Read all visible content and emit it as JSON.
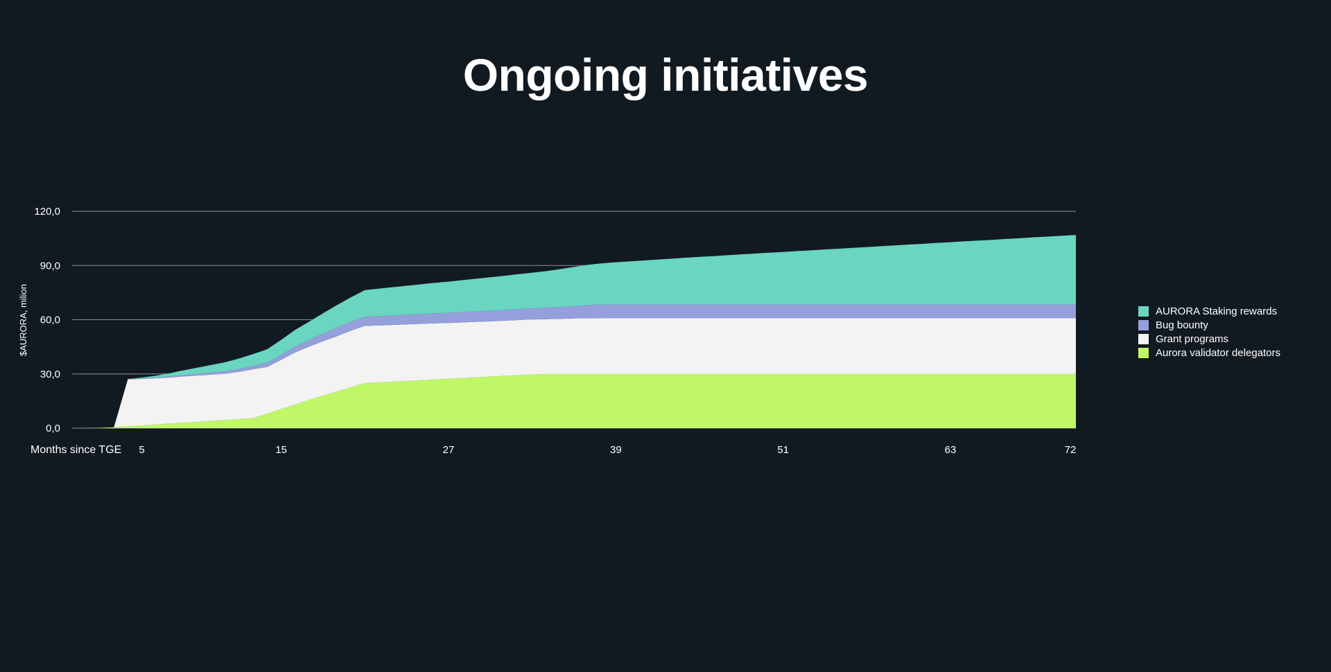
{
  "title": "Ongoing initiatives",
  "colors": {
    "background": "#121a21",
    "gridline": "#8a9097",
    "text": "#ffffff"
  },
  "chart_data": {
    "type": "area",
    "stacked": true,
    "title": "Ongoing initiatives",
    "xlabel": "Months since TGE",
    "ylabel": "$AURORA, milion",
    "ylim": [
      0,
      120
    ],
    "xlim": [
      0,
      72
    ],
    "yticks": [
      "0,0",
      "30,0",
      "60,0",
      "90,0",
      "120,0"
    ],
    "ytick_values": [
      0,
      30,
      60,
      90,
      120
    ],
    "xticks": [
      "5",
      "15",
      "27",
      "39",
      "51",
      "63",
      "72"
    ],
    "xtick_values": [
      5,
      15,
      27,
      39,
      51,
      63,
      72
    ],
    "grid": "horizontal",
    "legend_position": "right",
    "x": [
      0,
      1,
      2,
      3,
      4,
      5,
      6,
      7,
      8,
      9,
      10,
      11,
      12,
      13,
      14,
      15,
      16,
      17,
      18,
      19,
      20,
      21,
      22,
      23,
      24,
      25,
      26,
      27,
      28,
      29,
      30,
      31,
      32,
      33,
      34,
      35,
      36,
      37,
      38,
      39,
      40,
      41,
      42,
      43,
      44,
      45,
      46,
      47,
      48,
      49,
      50,
      51,
      52,
      53,
      54,
      55,
      56,
      57,
      58,
      59,
      60,
      61,
      62,
      63,
      64,
      65,
      66,
      67,
      68,
      69,
      70,
      71,
      72
    ],
    "series": [
      {
        "name": "Aurora validator delegators",
        "color": "#bff767",
        "values": [
          0,
          0,
          0.2,
          0.5,
          1.0,
          1.5,
          2.0,
          2.5,
          3.0,
          3.5,
          4.0,
          4.5,
          5.0,
          5.5,
          8.0,
          10.6,
          13.1,
          15.6,
          17.9,
          20.2,
          22.6,
          24.9,
          25.3,
          25.7,
          26.1,
          26.5,
          26.9,
          27.3,
          27.7,
          28.1,
          28.5,
          28.9,
          29.3,
          29.7,
          30,
          30,
          30,
          30,
          30,
          30,
          30,
          30,
          30,
          30,
          30,
          30,
          30,
          30,
          30,
          30,
          30,
          30,
          30,
          30,
          30,
          30,
          30,
          30,
          30,
          30,
          30,
          30,
          30,
          30,
          30,
          30,
          30,
          30,
          30,
          30,
          30,
          30,
          30
        ]
      },
      {
        "name": "Grant programs",
        "color": "#f3f3f3",
        "values": [
          0,
          0,
          0,
          0,
          26.0,
          25.7,
          25.6,
          25.5,
          25.6,
          25.6,
          25.6,
          25.6,
          26.2,
          27.1,
          25.9,
          27.2,
          28.8,
          29.5,
          30.2,
          30.7,
          31.3,
          31.7,
          31.5,
          31.4,
          31.3,
          31.2,
          31.1,
          30.9,
          30.8,
          30.7,
          30.6,
          30.5,
          30.5,
          30.4,
          30.3,
          30.5,
          30.7,
          30.8,
          30.9,
          30.9,
          30.9,
          30.9,
          30.9,
          30.9,
          30.9,
          30.9,
          30.9,
          30.9,
          30.9,
          30.9,
          30.9,
          30.9,
          30.9,
          30.9,
          30.9,
          30.9,
          30.9,
          30.9,
          30.9,
          30.9,
          30.9,
          30.9,
          30.9,
          30.9,
          30.9,
          30.9,
          30.9,
          30.9,
          30.9,
          30.9,
          30.9,
          30.9,
          30.9
        ]
      },
      {
        "name": "Bug bounty",
        "color": "#949fdb",
        "values": [
          0,
          0,
          0,
          0,
          0.2,
          0.3,
          0.4,
          0.6,
          0.8,
          1.0,
          1.2,
          1.4,
          1.6,
          1.8,
          2.3,
          2.8,
          3.3,
          3.8,
          4.3,
          4.8,
          4.9,
          5.0,
          5.1,
          5.2,
          5.3,
          5.4,
          5.5,
          5.6,
          5.7,
          5.8,
          5.9,
          6.0,
          6.1,
          6.2,
          6.3,
          6.5,
          6.8,
          7.3,
          7.5,
          7.6,
          7.6,
          7.6,
          7.6,
          7.6,
          7.6,
          7.6,
          7.6,
          7.6,
          7.6,
          7.6,
          7.6,
          7.6,
          7.6,
          7.6,
          7.6,
          7.6,
          7.6,
          7.6,
          7.6,
          7.6,
          7.6,
          7.6,
          7.6,
          7.6,
          7.6,
          7.6,
          7.6,
          7.6,
          7.6,
          7.6,
          7.6,
          7.6,
          7.6
        ]
      },
      {
        "name": "AURORA Staking rewards",
        "color": "#6ad5c1",
        "values": [
          0,
          0,
          0,
          0,
          0,
          0.5,
          1.0,
          1.8,
          2.6,
          3.4,
          4.2,
          5.0,
          5.8,
          6.6,
          7.5,
          8.3,
          9.2,
          10.0,
          11.2,
          12.4,
          13.6,
          14.8,
          15.3,
          15.7,
          16.1,
          16.5,
          16.9,
          17.3,
          17.7,
          18.1,
          18.5,
          18.9,
          19.3,
          19.7,
          20.3,
          21.0,
          21.7,
          22.3,
          22.8,
          23.3,
          23.8,
          24.3,
          24.8,
          25.3,
          25.8,
          26.3,
          26.7,
          27.2,
          27.7,
          28.1,
          28.6,
          29.0,
          29.5,
          29.9,
          30.4,
          30.8,
          31.3,
          31.7,
          32.2,
          32.6,
          33.1,
          33.5,
          34.0,
          34.4,
          34.9,
          35.3,
          35.7,
          36.2,
          36.6,
          37.1,
          37.5,
          38.0,
          38.4
        ]
      }
    ]
  }
}
